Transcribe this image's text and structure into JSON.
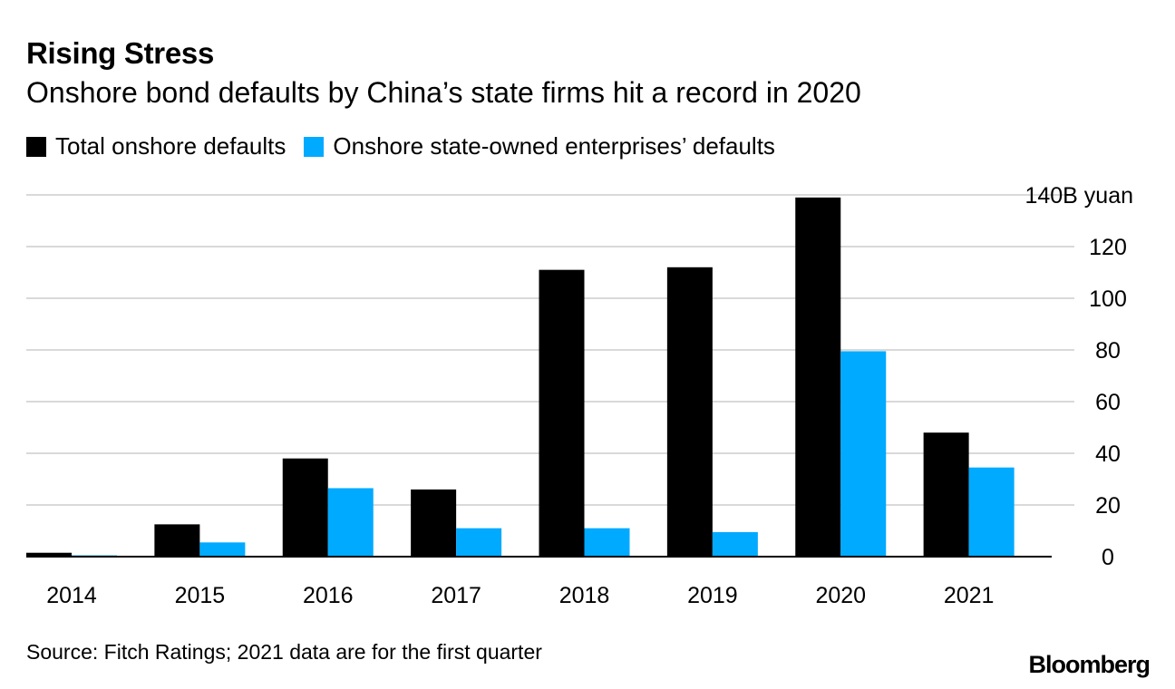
{
  "chart_data": {
    "type": "bar",
    "title": "Rising Stress",
    "subtitle": "Onshore bond defaults by China’s state firms hit a record in 2020",
    "categories": [
      "2014",
      "2015",
      "2016",
      "2017",
      "2018",
      "2019",
      "2020",
      "2021"
    ],
    "series": [
      {
        "name": "Total onshore defaults",
        "color": "#000000",
        "values": [
          1.5,
          12.5,
          38,
          26,
          111,
          112,
          139,
          48
        ]
      },
      {
        "name": "Onshore state-owned enterprises’ defaults",
        "color": "#00aaff",
        "values": [
          0.5,
          5.5,
          26.5,
          11,
          11,
          9.5,
          79.5,
          34.5
        ]
      }
    ],
    "ylim": [
      0,
      140
    ],
    "yticks": [
      0,
      20,
      40,
      60,
      80,
      100,
      120,
      140
    ],
    "ytick_labels": [
      "0",
      "20",
      "40",
      "60",
      "80",
      "100",
      "120",
      "140B yuan"
    ],
    "ylabel": "B yuan",
    "xlabel": "",
    "grid": true,
    "legend_position": "top-left",
    "y_axis_side": "right"
  },
  "source": "Source: Fitch Ratings; 2021 data are for the first quarter",
  "brand": "Bloomberg"
}
